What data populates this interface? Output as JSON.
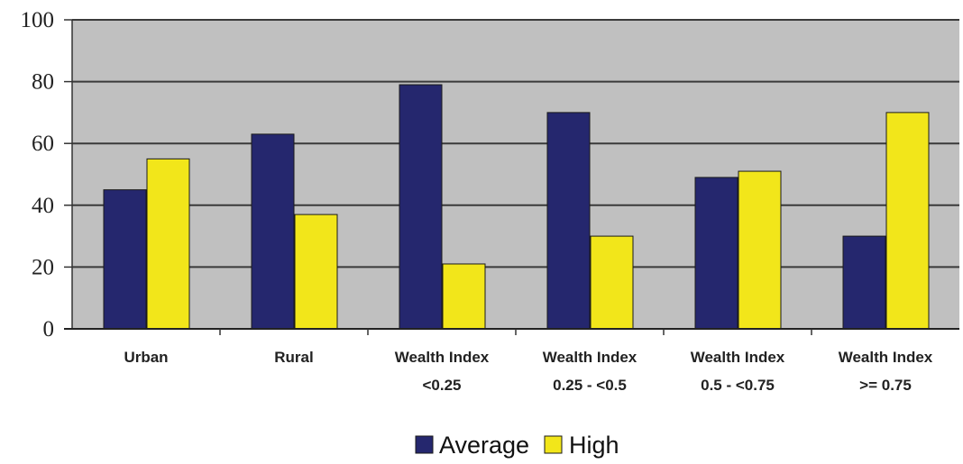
{
  "chart_data": {
    "type": "bar",
    "categories": [
      [
        "Urban"
      ],
      [
        "Rural"
      ],
      [
        "Wealth Index",
        "<0.25"
      ],
      [
        "Wealth Index",
        "0.25 - <0.5"
      ],
      [
        "Wealth Index",
        "0.5 - <0.75"
      ],
      [
        "Wealth Index",
        ">= 0.75"
      ]
    ],
    "series": [
      {
        "name": "Average",
        "color": "#25276e",
        "values": [
          45,
          63,
          79,
          70,
          49,
          30
        ]
      },
      {
        "name": "High",
        "color": "#f2e61a",
        "values": [
          55,
          37,
          21,
          30,
          51,
          70
        ]
      }
    ],
    "ylim": [
      0,
      100
    ],
    "yticks": [
      0,
      20,
      40,
      60,
      80,
      100
    ],
    "grid": true,
    "plot_background": "#c0c0c0",
    "legend_position": "bottom-center"
  }
}
